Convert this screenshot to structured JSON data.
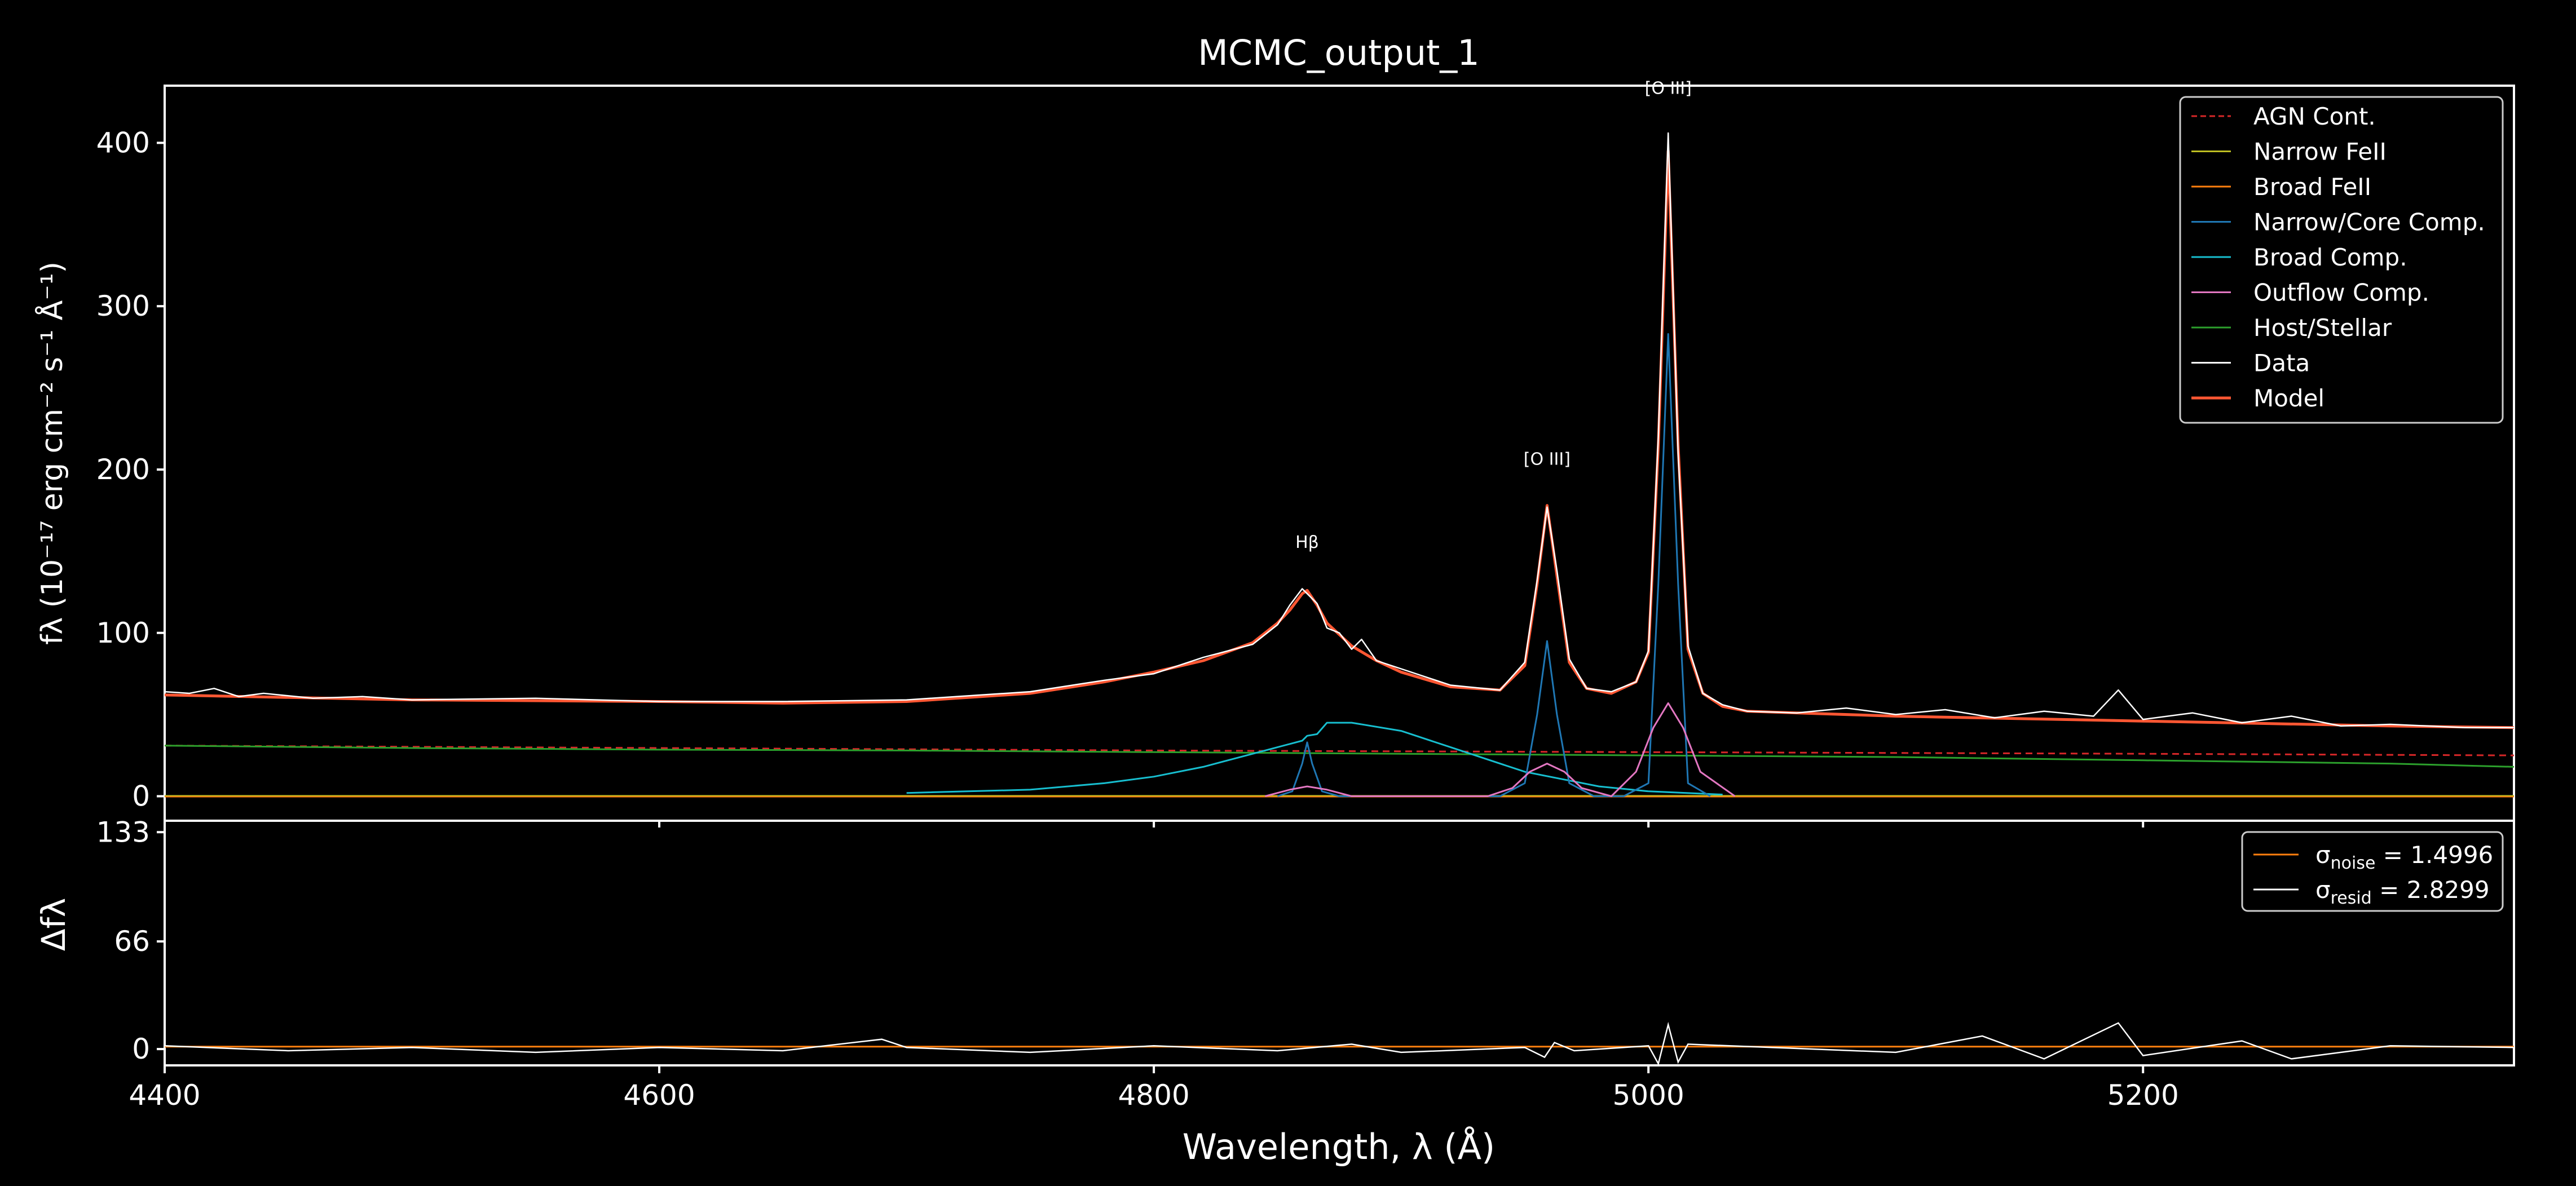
{
  "title": "MCMC_output_1",
  "colors": {
    "background": "#000000",
    "axes": "#ffffff",
    "agn": "#d62728",
    "narrow_feii": "#bcbd22",
    "broad_feii": "#ff7f0e",
    "narrow_core": "#1f77b4",
    "broad": "#17becf",
    "outflow": "#e377c2",
    "host": "#2ca02c",
    "data": "#ffffff",
    "model": "#ff5733",
    "zero_line": "#ffffff"
  },
  "chart_data": [
    {
      "type": "line",
      "panel": "spectrum",
      "title": "MCMC_output_1",
      "xlabel": "Wavelength, λ (Å)",
      "ylabel": "fλ (10⁻¹⁷ erg cm⁻² s⁻¹ Å⁻¹)",
      "xlim": [
        4400,
        5350
      ],
      "ylim": [
        -15,
        435
      ],
      "xticks": [
        4400,
        4600,
        4800,
        5000,
        5200
      ],
      "yticks": [
        0,
        100,
        200,
        300,
        400
      ],
      "legend_position": "top-right",
      "legend": [
        {
          "label": "AGN Cont.",
          "color": "#d62728",
          "style": "dashed"
        },
        {
          "label": "Narrow FeII",
          "color": "#bcbd22",
          "style": "solid"
        },
        {
          "label": "Broad FeII",
          "color": "#ff7f0e",
          "style": "solid"
        },
        {
          "label": "Narrow/Core Comp.",
          "color": "#1f77b4",
          "style": "solid"
        },
        {
          "label": "Broad Comp.",
          "color": "#17becf",
          "style": "solid"
        },
        {
          "label": "Outflow Comp.",
          "color": "#e377c2",
          "style": "solid"
        },
        {
          "label": "Host/Stellar",
          "color": "#2ca02c",
          "style": "solid"
        },
        {
          "label": "Data",
          "color": "#ffffff",
          "style": "solid"
        },
        {
          "label": "Model",
          "color": "#ff5733",
          "style": "solid"
        }
      ],
      "annotations": [
        {
          "text": "Hβ",
          "x": 4862,
          "y": 152
        },
        {
          "text": "[O III]",
          "x": 4959,
          "y": 203
        },
        {
          "text": "[O III]",
          "x": 5008,
          "y": 430
        }
      ],
      "series": [
        {
          "name": "AGN Cont.",
          "x": [
            4400,
            4600,
            4800,
            5000,
            5200,
            5350
          ],
          "y": [
            31,
            29.5,
            28,
            27,
            26,
            25
          ]
        },
        {
          "name": "Host/Stellar",
          "x": [
            4400,
            4500,
            4600,
            4700,
            4800,
            4900,
            5000,
            5100,
            5200,
            5300,
            5350
          ],
          "y": [
            31,
            29.5,
            28.5,
            28,
            27,
            26,
            25,
            24,
            22,
            20,
            18
          ]
        },
        {
          "name": "Broad Comp.",
          "x": [
            4700,
            4750,
            4780,
            4800,
            4820,
            4840,
            4850,
            4855,
            4860,
            4862,
            4866,
            4870,
            4880,
            4900,
            4920,
            4950,
            4980,
            5000,
            5030
          ],
          "y": [
            2,
            4,
            8,
            12,
            18,
            26,
            30,
            32,
            34,
            37,
            38,
            45,
            45,
            40,
            30,
            15,
            6,
            3,
            1
          ]
        },
        {
          "name": "Narrow/Core Comp.",
          "x": [
            4850,
            4856,
            4860,
            4862,
            4864,
            4868,
            4875,
            4940,
            4950,
            4955,
            4959,
            4963,
            4968,
            4978,
            4990,
            5000,
            5004,
            5008,
            5012,
            5016,
            5025
          ],
          "y": [
            0,
            3,
            20,
            33,
            20,
            3,
            0,
            0,
            8,
            50,
            95,
            50,
            8,
            0,
            0,
            8,
            130,
            283,
            130,
            8,
            0
          ]
        },
        {
          "name": "Outflow Comp.",
          "x": [
            4845,
            4855,
            4862,
            4870,
            4880,
            4935,
            4945,
            4952,
            4959,
            4966,
            4973,
            4985,
            4985,
            4995,
            5002,
            5008,
            5014,
            5021,
            5035
          ],
          "y": [
            0,
            4,
            6,
            4,
            0,
            0,
            5,
            15,
            20,
            15,
            5,
            0,
            0,
            15,
            42,
            57,
            42,
            15,
            0
          ]
        },
        {
          "name": "Model",
          "x": [
            4400,
            4500,
            4600,
            4650,
            4700,
            4750,
            4780,
            4800,
            4820,
            4840,
            4850,
            4855,
            4860,
            4862,
            4866,
            4870,
            4875,
            4880,
            4890,
            4900,
            4920,
            4940,
            4950,
            4955,
            4959,
            4963,
            4968,
            4975,
            4985,
            4995,
            5000,
            5004,
            5008,
            5012,
            5016,
            5022,
            5030,
            5040,
            5100,
            5200,
            5300,
            5350
          ],
          "y": [
            62,
            59,
            58,
            57,
            58,
            63,
            70,
            76,
            83,
            94,
            106,
            114,
            124,
            126,
            117,
            106,
            99,
            92,
            83,
            76,
            67,
            65,
            80,
            130,
            178,
            135,
            82,
            66,
            63,
            70,
            88,
            215,
            395,
            215,
            90,
            63,
            55,
            52,
            49,
            46,
            43,
            42
          ]
        },
        {
          "name": "Data",
          "x": [
            4400,
            4410,
            4420,
            4430,
            4440,
            4460,
            4480,
            4500,
            4550,
            4600,
            4650,
            4700,
            4750,
            4780,
            4800,
            4820,
            4840,
            4850,
            4855,
            4860,
            4862,
            4866,
            4870,
            4875,
            4880,
            4884,
            4890,
            4900,
            4920,
            4940,
            4950,
            4955,
            4959,
            4963,
            4968,
            4975,
            4985,
            4995,
            5000,
            5004,
            5008,
            5012,
            5016,
            5022,
            5030,
            5040,
            5060,
            5080,
            5100,
            5120,
            5140,
            5160,
            5180,
            5190,
            5200,
            5220,
            5240,
            5260,
            5280,
            5300,
            5330,
            5350
          ],
          "y": [
            64,
            63,
            66,
            61,
            63,
            60,
            61,
            59,
            60,
            58,
            58,
            59,
            64,
            71,
            75,
            85,
            93,
            105,
            117,
            127,
            124,
            118,
            103,
            100,
            90,
            96,
            83,
            78,
            68,
            65,
            82,
            132,
            177,
            138,
            84,
            66,
            64,
            70,
            89,
            220,
            406,
            210,
            92,
            63,
            56,
            52,
            51,
            54,
            50,
            53,
            48,
            52,
            49,
            65,
            47,
            51,
            45,
            49,
            43,
            44,
            42,
            42
          ]
        }
      ]
    },
    {
      "type": "line",
      "panel": "residual",
      "ylabel": "Δfλ",
      "xlim": [
        4400,
        5350
      ],
      "ylim": [
        -10,
        140
      ],
      "yticks": [
        0,
        66,
        133
      ],
      "legend_position": "top-right",
      "legend": [
        {
          "label": "σnoise = 1.4996",
          "color": "#ff7f0e"
        },
        {
          "label": "σresid = 2.8299",
          "color": "#ffffff"
        }
      ],
      "series": [
        {
          "name": "σnoise = 1.4996",
          "x": [
            4400,
            5350
          ],
          "y": [
            1.5,
            1.5
          ]
        },
        {
          "name": "σresid = 2.8299",
          "x": [
            4400,
            4450,
            4500,
            4550,
            4600,
            4650,
            4690,
            4700,
            4750,
            4800,
            4850,
            4880,
            4900,
            4950,
            4958,
            4962,
            4970,
            5000,
            5004,
            5008,
            5012,
            5016,
            5050,
            5100,
            5135,
            5160,
            5190,
            5200,
            5240,
            5260,
            5300,
            5350
          ],
          "y": [
            2,
            -1,
            1,
            -2,
            1,
            -1,
            6,
            1,
            -2,
            2,
            -1,
            3,
            -2,
            1,
            -5,
            4,
            -1,
            2,
            -9,
            15,
            -8,
            3,
            1,
            -2,
            8,
            -6,
            16,
            -4,
            5,
            -6,
            2,
            1
          ]
        }
      ]
    }
  ]
}
